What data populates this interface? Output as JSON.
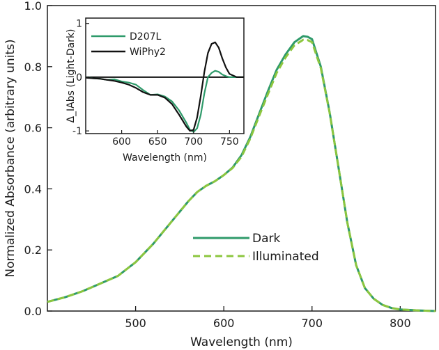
{
  "chart_data": [
    {
      "type": "line",
      "xlabel": "Wavelength (nm)",
      "ylabel": "Normalized Absorbance (arbitrary units)",
      "xlim": [
        400,
        840
      ],
      "ylim": [
        0.0,
        1.0
      ],
      "x_ticks": [
        500,
        600,
        700,
        800
      ],
      "y_ticks": [
        0.0,
        0.2,
        0.4,
        0.6,
        0.8,
        1.0
      ],
      "x_tick_labels": [
        "500",
        "600",
        "700",
        "800"
      ],
      "y_tick_labels": [
        "0.0",
        "0.2",
        "0.4",
        "0.6",
        "0.8",
        "1.0"
      ],
      "grid": false,
      "legend_position": "center-right",
      "series": [
        {
          "name": "Dark",
          "color": "#2e9a6a",
          "style": "solid",
          "x": [
            400,
            420,
            440,
            460,
            480,
            500,
            520,
            540,
            560,
            570,
            580,
            590,
            600,
            610,
            620,
            630,
            640,
            650,
            660,
            670,
            680,
            690,
            695,
            700,
            710,
            720,
            730,
            740,
            750,
            760,
            770,
            780,
            790,
            800,
            820,
            840
          ],
          "y": [
            0.03,
            0.045,
            0.065,
            0.09,
            0.115,
            0.16,
            0.22,
            0.29,
            0.36,
            0.39,
            0.41,
            0.425,
            0.445,
            0.47,
            0.51,
            0.57,
            0.645,
            0.72,
            0.79,
            0.84,
            0.88,
            0.9,
            0.898,
            0.89,
            0.8,
            0.65,
            0.47,
            0.29,
            0.15,
            0.075,
            0.04,
            0.02,
            0.01,
            0.005,
            0.002,
            0.0
          ]
        },
        {
          "name": "Illuminated",
          "color": "#8cc63f",
          "style": "dashed",
          "x": [
            400,
            420,
            440,
            460,
            480,
            500,
            520,
            540,
            560,
            570,
            580,
            590,
            600,
            610,
            620,
            630,
            640,
            650,
            660,
            670,
            680,
            690,
            695,
            700,
            710,
            720,
            730,
            740,
            750,
            760,
            770,
            780,
            790,
            800,
            820,
            840
          ],
          "y": [
            0.03,
            0.045,
            0.065,
            0.09,
            0.115,
            0.16,
            0.22,
            0.29,
            0.36,
            0.39,
            0.41,
            0.425,
            0.445,
            0.468,
            0.505,
            0.565,
            0.638,
            0.71,
            0.78,
            0.83,
            0.87,
            0.888,
            0.887,
            0.88,
            0.795,
            0.648,
            0.47,
            0.29,
            0.15,
            0.075,
            0.04,
            0.02,
            0.01,
            0.005,
            0.002,
            0.0
          ]
        }
      ]
    },
    {
      "type": "line",
      "xlabel": "Wavelength (nm)",
      "ylabel": "Δ_IAbs (Light-Dark)",
      "xlim": [
        550,
        770
      ],
      "ylim": [
        -1.05,
        1.1
      ],
      "x_ticks": [
        600,
        650,
        700,
        750
      ],
      "y_ticks": [
        -1,
        0,
        1
      ],
      "x_tick_labels": [
        "600",
        "650",
        "700",
        "750"
      ],
      "y_tick_labels": [
        "-1",
        "0",
        "1"
      ],
      "zero_line": true,
      "legend_position": "top-left",
      "series": [
        {
          "name": "D207L",
          "color": "#2e9a6a",
          "x": [
            550,
            560,
            570,
            580,
            590,
            600,
            610,
            620,
            630,
            640,
            650,
            660,
            670,
            680,
            690,
            695,
            700,
            705,
            710,
            715,
            720,
            725,
            730,
            735,
            740,
            745,
            750,
            760,
            770
          ],
          "y": [
            0.0,
            -0.02,
            -0.03,
            -0.05,
            -0.04,
            -0.08,
            -0.1,
            -0.14,
            -0.24,
            -0.33,
            -0.32,
            -0.36,
            -0.45,
            -0.62,
            -0.85,
            -0.98,
            -1.02,
            -0.95,
            -0.7,
            -0.3,
            0.0,
            0.08,
            0.12,
            0.1,
            0.05,
            0.02,
            0.0,
            0.0,
            0.0
          ]
        },
        {
          "name": "WiPhy2",
          "color": "#111111",
          "x": [
            550,
            560,
            570,
            580,
            590,
            600,
            610,
            620,
            630,
            640,
            650,
            660,
            670,
            680,
            690,
            695,
            700,
            705,
            710,
            715,
            720,
            725,
            730,
            735,
            740,
            745,
            750,
            760,
            770
          ],
          "y": [
            -0.01,
            -0.02,
            -0.03,
            -0.05,
            -0.07,
            -0.1,
            -0.14,
            -0.2,
            -0.28,
            -0.33,
            -0.33,
            -0.38,
            -0.5,
            -0.7,
            -0.92,
            -1.0,
            -0.98,
            -0.75,
            -0.35,
            0.1,
            0.45,
            0.62,
            0.65,
            0.55,
            0.35,
            0.18,
            0.06,
            0.0,
            0.0
          ]
        }
      ]
    }
  ]
}
